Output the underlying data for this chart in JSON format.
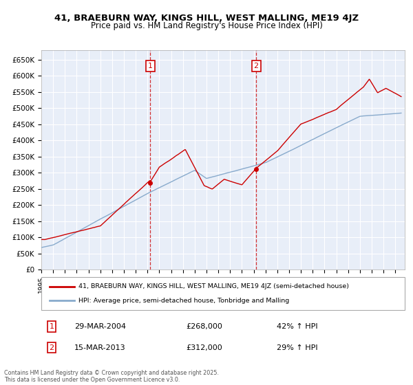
{
  "title": "41, BRAEBURN WAY, KINGS HILL, WEST MALLING, ME19 4JZ",
  "subtitle": "Price paid vs. HM Land Registry's House Price Index (HPI)",
  "ylim": [
    0,
    680000
  ],
  "yticks": [
    0,
    50000,
    100000,
    150000,
    200000,
    250000,
    300000,
    350000,
    400000,
    450000,
    500000,
    550000,
    600000,
    650000
  ],
  "xlim_start": 1995.0,
  "xlim_end": 2025.8,
  "purchase1_date": 2004.24,
  "purchase1_price": 268000,
  "purchase1_label": "1",
  "purchase2_date": 2013.21,
  "purchase2_price": 312000,
  "purchase2_label": "2",
  "line_color_property": "#cc0000",
  "line_color_hpi": "#88aacc",
  "background_color": "#e8eef8",
  "grid_color": "#ffffff",
  "legend_entry1": "41, BRAEBURN WAY, KINGS HILL, WEST MALLING, ME19 4JZ (semi-detached house)",
  "legend_entry2": "HPI: Average price, semi-detached house, Tonbridge and Malling",
  "annotation1_date": "29-MAR-2004",
  "annotation1_price": "£268,000",
  "annotation1_hpi": "42% ↑ HPI",
  "annotation2_date": "15-MAR-2013",
  "annotation2_price": "£312,000",
  "annotation2_hpi": "29% ↑ HPI",
  "footer": "Contains HM Land Registry data © Crown copyright and database right 2025.\nThis data is licensed under the Open Government Licence v3.0."
}
